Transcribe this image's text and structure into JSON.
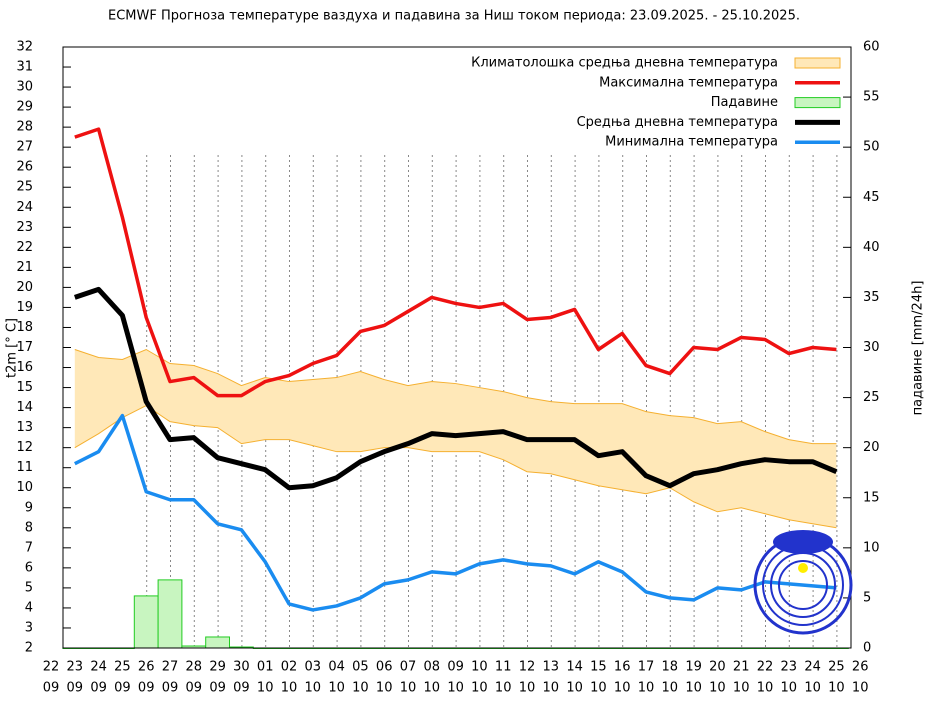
{
  "chart_data": {
    "type": "line",
    "title": "ECMWF Прогноза температуре ваздуха и падавина за Ниш током периода: 23.09.2025. - 25.10.2025.",
    "y_label": "t2m [° C]",
    "y2_label": "падавине [mm/24h]",
    "categories": [
      [
        "22",
        "09"
      ],
      [
        "23",
        "09"
      ],
      [
        "24",
        "09"
      ],
      [
        "25",
        "09"
      ],
      [
        "26",
        "09"
      ],
      [
        "27",
        "09"
      ],
      [
        "28",
        "09"
      ],
      [
        "29",
        "09"
      ],
      [
        "30",
        "09"
      ],
      [
        "01",
        "10"
      ],
      [
        "02",
        "10"
      ],
      [
        "03",
        "10"
      ],
      [
        "04",
        "10"
      ],
      [
        "05",
        "10"
      ],
      [
        "06",
        "10"
      ],
      [
        "07",
        "10"
      ],
      [
        "08",
        "10"
      ],
      [
        "09",
        "10"
      ],
      [
        "10",
        "10"
      ],
      [
        "11",
        "10"
      ],
      [
        "12",
        "10"
      ],
      [
        "13",
        "10"
      ],
      [
        "14",
        "10"
      ],
      [
        "15",
        "10"
      ],
      [
        "16",
        "10"
      ],
      [
        "17",
        "10"
      ],
      [
        "18",
        "10"
      ],
      [
        "19",
        "10"
      ],
      [
        "20",
        "10"
      ],
      [
        "21",
        "10"
      ],
      [
        "22",
        "10"
      ],
      [
        "23",
        "10"
      ],
      [
        "24",
        "10"
      ],
      [
        "25",
        "10"
      ],
      [
        "26",
        "10"
      ]
    ],
    "ylim": [
      2,
      32
    ],
    "yticks": [
      2,
      3,
      4,
      5,
      6,
      7,
      8,
      9,
      10,
      11,
      12,
      13,
      14,
      15,
      16,
      17,
      18,
      19,
      20,
      21,
      22,
      23,
      24,
      25,
      26,
      27,
      28,
      29,
      30,
      31,
      32
    ],
    "y2lim": [
      0,
      60
    ],
    "y2ticks": [
      0,
      5,
      10,
      15,
      20,
      25,
      30,
      35,
      40,
      45,
      50,
      55,
      60
    ],
    "legend": "upper right",
    "series": [
      {
        "name": "Климатолошка средња дневна температура",
        "type": "band",
        "color": "#ffe8b8",
        "edge_color": "#f5b030",
        "upper": [
          null,
          16.9,
          16.5,
          16.4,
          16.9,
          16.2,
          16.1,
          15.7,
          15.1,
          15.5,
          15.3,
          15.4,
          15.5,
          15.8,
          15.4,
          15.1,
          15.3,
          15.2,
          15.0,
          14.8,
          14.5,
          14.3,
          14.2,
          14.2,
          14.2,
          13.8,
          13.6,
          13.5,
          13.2,
          13.3,
          12.8,
          12.4,
          12.2,
          12.2,
          null
        ],
        "lower": [
          null,
          12.0,
          12.7,
          13.5,
          14.1,
          13.3,
          13.1,
          13.0,
          12.2,
          12.4,
          12.4,
          12.1,
          11.8,
          11.8,
          12.0,
          12.0,
          11.8,
          11.8,
          11.8,
          11.4,
          10.8,
          10.7,
          10.4,
          10.1,
          9.9,
          9.7,
          10.0,
          9.3,
          8.8,
          9.0,
          8.7,
          8.4,
          8.2,
          8.0,
          null
        ]
      },
      {
        "name": "Максимална температура",
        "type": "line",
        "color": "#ee1111",
        "width": 3.5,
        "values": [
          null,
          27.5,
          27.9,
          23.5,
          18.5,
          15.3,
          15.5,
          14.6,
          14.6,
          15.3,
          15.6,
          16.2,
          16.6,
          17.8,
          18.1,
          18.8,
          19.5,
          19.2,
          19.0,
          19.2,
          18.4,
          18.5,
          18.9,
          16.9,
          17.7,
          16.1,
          15.7,
          17.0,
          16.9,
          17.5,
          17.4,
          16.7,
          17.0,
          16.9,
          null
        ]
      },
      {
        "name": "Падавине",
        "type": "bar",
        "axis": "y2",
        "color": "#c8f5c0",
        "edge_color": "#22cc22",
        "values": [
          null,
          0,
          0,
          0,
          5.2,
          6.8,
          0.2,
          1.1,
          0.1,
          0,
          0,
          0,
          0,
          0,
          0,
          0,
          0,
          0,
          0,
          0,
          0,
          0,
          0,
          0,
          0,
          0,
          0,
          0,
          0,
          0,
          0,
          0,
          0,
          0,
          null
        ]
      },
      {
        "name": "Средња дневна температура",
        "type": "line",
        "color": "#000000",
        "width": 5,
        "values": [
          null,
          19.5,
          19.9,
          18.6,
          14.3,
          12.4,
          12.5,
          11.5,
          11.2,
          10.9,
          10.0,
          10.1,
          10.5,
          11.3,
          11.8,
          12.2,
          12.7,
          12.6,
          12.7,
          12.8,
          12.4,
          12.4,
          12.4,
          11.6,
          11.8,
          10.6,
          10.1,
          10.7,
          10.9,
          11.2,
          11.4,
          11.3,
          11.3,
          10.8,
          null
        ]
      },
      {
        "name": "Минимална температура",
        "type": "line",
        "color": "#1a8cf0",
        "width": 3.5,
        "values": [
          null,
          11.2,
          11.8,
          13.6,
          9.8,
          9.4,
          9.4,
          8.2,
          7.9,
          6.3,
          4.2,
          3.9,
          4.1,
          4.5,
          5.2,
          5.4,
          5.8,
          5.7,
          6.2,
          6.4,
          6.2,
          6.1,
          5.7,
          6.3,
          5.8,
          4.8,
          4.5,
          4.4,
          5.0,
          4.9,
          5.3,
          5.2,
          5.1,
          5.0,
          null
        ]
      }
    ]
  }
}
